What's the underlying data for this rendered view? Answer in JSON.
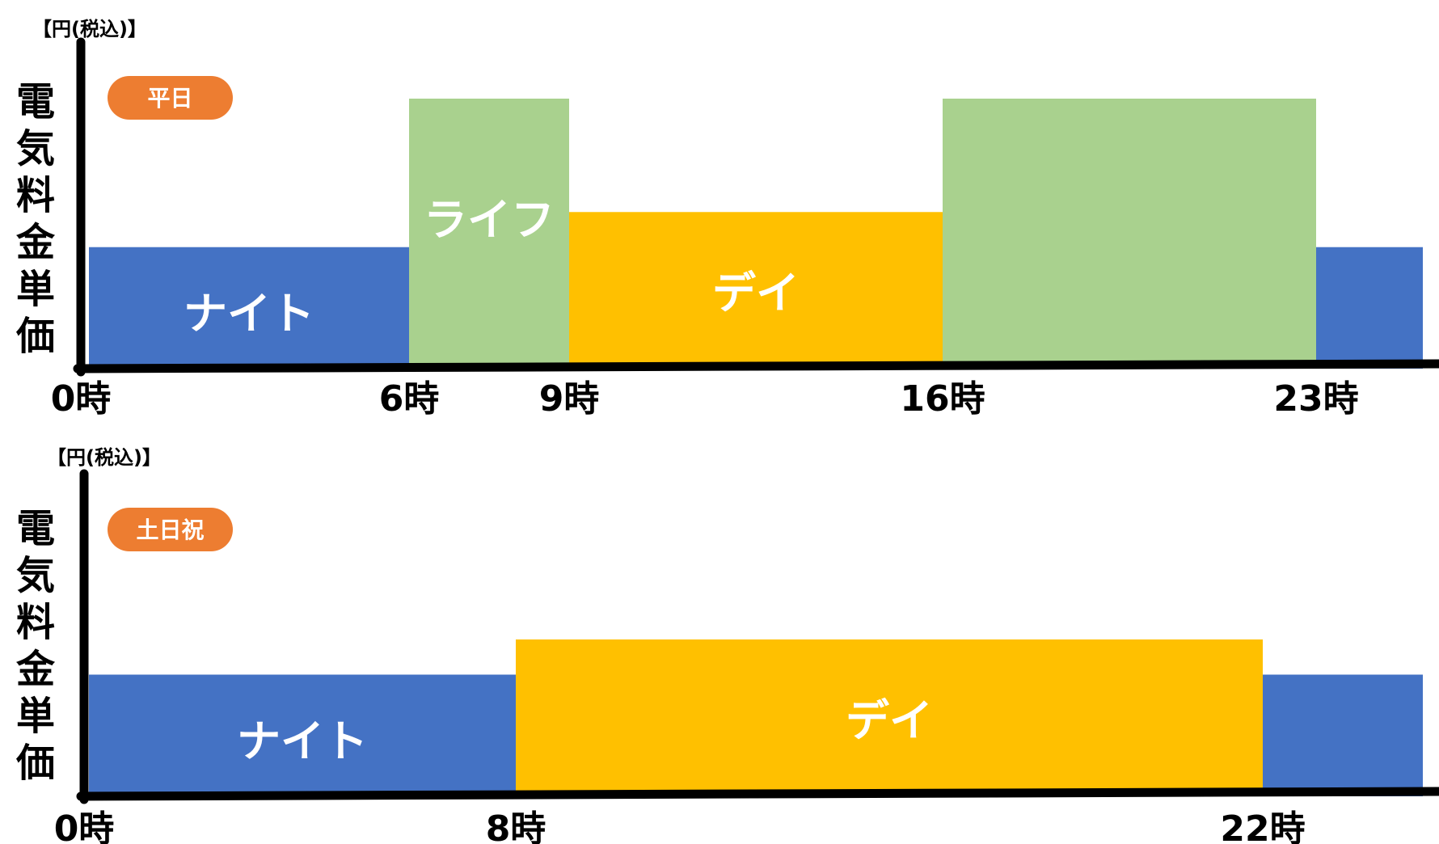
{
  "colors": {
    "night": "#4472c4",
    "life": "#a9d18e",
    "day": "#ffc000",
    "badge": "#ed7d31",
    "axis": "#000000"
  },
  "chart_data": [
    {
      "type": "bar",
      "badge": "平日",
      "unit_label": "【円(税込)】",
      "ylabel": "電気料金単価",
      "x_unit": "hour",
      "xlim": [
        0,
        25
      ],
      "tick_labels": [
        {
          "hour": 0,
          "label": "0時"
        },
        {
          "hour": 6,
          "label": "6時"
        },
        {
          "hour": 9,
          "label": "9時"
        },
        {
          "hour": 16,
          "label": "16時"
        },
        {
          "hour": 23,
          "label": "23時"
        }
      ],
      "segments": [
        {
          "start": 0,
          "end": 6,
          "band": "night",
          "level": 0.45,
          "label": "ナイト"
        },
        {
          "start": 6,
          "end": 9,
          "band": "life",
          "level": 1.0,
          "label": "ライフ"
        },
        {
          "start": 9,
          "end": 16,
          "band": "day",
          "level": 0.58,
          "label": "デイ"
        },
        {
          "start": 16,
          "end": 23,
          "band": "life",
          "level": 1.0,
          "label": ""
        },
        {
          "start": 23,
          "end": 25,
          "band": "night",
          "level": 0.45,
          "label": ""
        }
      ]
    },
    {
      "type": "bar",
      "badge": "土日祝",
      "unit_label": "【円(税込)】",
      "ylabel": "電気料金単価",
      "x_unit": "hour",
      "xlim": [
        0,
        25
      ],
      "tick_labels": [
        {
          "hour": 0,
          "label": "0時"
        },
        {
          "hour": 8,
          "label": "8時"
        },
        {
          "hour": 22,
          "label": "22時"
        }
      ],
      "segments": [
        {
          "start": 0,
          "end": 8,
          "band": "night",
          "level": 0.45,
          "label": "ナイト"
        },
        {
          "start": 8,
          "end": 22,
          "band": "day",
          "level": 0.58,
          "label": "デイ"
        },
        {
          "start": 22,
          "end": 25,
          "band": "night",
          "level": 0.45,
          "label": ""
        }
      ]
    }
  ]
}
